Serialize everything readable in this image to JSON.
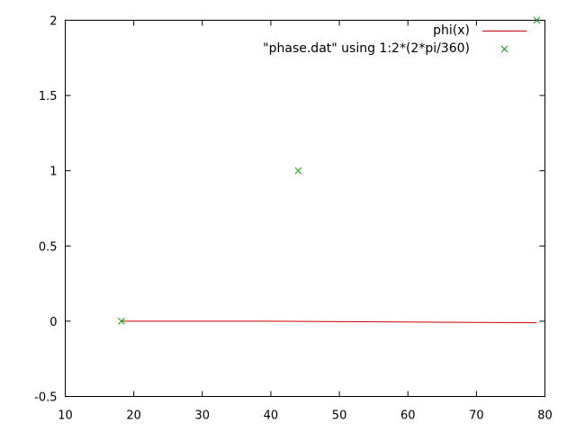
{
  "chart_data": {
    "type": "line",
    "title": "",
    "xlabel": "",
    "ylabel": "",
    "xlim": [
      10,
      80
    ],
    "ylim": [
      -0.5,
      2
    ],
    "x_ticks": [
      10,
      20,
      30,
      40,
      50,
      60,
      70,
      80
    ],
    "x_tick_labels": [
      "10",
      "20",
      "30",
      "40",
      "50",
      "60",
      "70",
      "80"
    ],
    "y_ticks": [
      -0.5,
      0,
      0.5,
      1,
      1.5,
      2
    ],
    "y_tick_labels": [
      "-0.5",
      "0",
      "0.5",
      "1",
      "1.5",
      "2"
    ],
    "grid": false,
    "legend_position": "top-right",
    "series": [
      {
        "name": "phi(x)",
        "kind": "line",
        "color": "#cc0000",
        "x": [
          18.2,
          39.4,
          78.8
        ],
        "y": [
          0,
          0,
          -0.01
        ]
      },
      {
        "name": "\"phase.dat\" using 1:2*(2*pi/360)",
        "kind": "scatter",
        "marker": "x",
        "color": "#00a000",
        "x": [
          18.2,
          44,
          78.8
        ],
        "y": [
          0,
          1,
          2
        ]
      }
    ]
  }
}
